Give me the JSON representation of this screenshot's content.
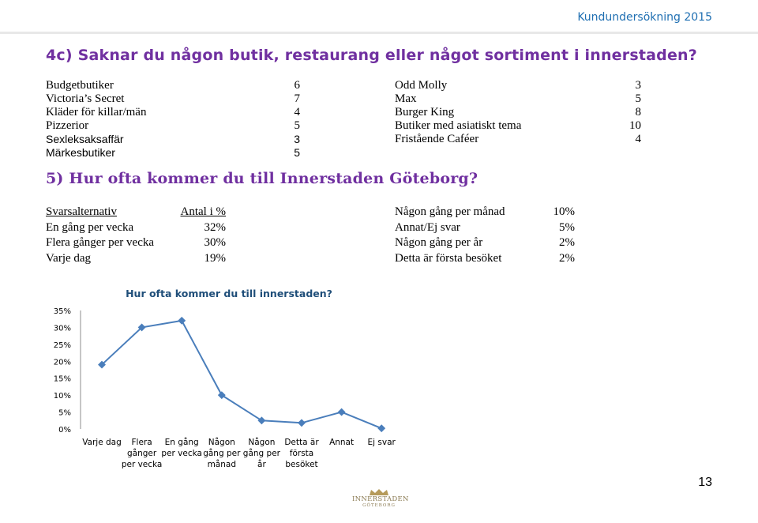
{
  "header": {
    "tag": "Kundundersökning 2015"
  },
  "q4c": {
    "title": "4c) Saknar du någon butik, restaurang eller något sortiment i innerstaden?",
    "left": [
      {
        "label": "Budgetbutiker",
        "value": "6"
      },
      {
        "label": "Victoria’s Secret",
        "value": "7"
      },
      {
        "label": "Kläder för killar/män",
        "value": "4"
      },
      {
        "label": "Pizzerior",
        "value": "5"
      },
      {
        "label": "Sexleksaksaffär",
        "value": "3"
      },
      {
        "label": "Märkesbutiker",
        "value": "5"
      }
    ],
    "right": [
      {
        "label": "Odd Molly",
        "value": "3"
      },
      {
        "label": "Max",
        "value": "5"
      },
      {
        "label": "Burger King",
        "value": "8"
      },
      {
        "label": "Butiker med asiatiskt tema",
        "value": "10"
      },
      {
        "label": "Fristående Caféer",
        "value": "4"
      }
    ]
  },
  "q5": {
    "title": "5) Hur ofta kommer du till Innerstaden Göteborg?",
    "header": {
      "option": "Svarsalternativ",
      "share": "Antal i %"
    },
    "left": [
      {
        "label": "En gång per vecka",
        "value": "32%"
      },
      {
        "label": "Flera gånger per vecka",
        "value": "30%"
      },
      {
        "label": "Varje dag",
        "value": "19%"
      }
    ],
    "right": [
      {
        "label": "Någon gång per månad",
        "value": "10%"
      },
      {
        "label": "Annat/Ej svar",
        "value": "5%"
      },
      {
        "label": "Någon gång per år",
        "value": "2%"
      },
      {
        "label": "Detta är första besöket",
        "value": "2%"
      }
    ]
  },
  "chart_data": {
    "type": "line",
    "title": "Hur ofta kommer du till innerstaden?",
    "categories": [
      [
        "Varje dag"
      ],
      [
        "Flera",
        "gånger",
        "per vecka"
      ],
      [
        "En gång",
        "per vecka"
      ],
      [
        "Någon",
        "gång per",
        "månad"
      ],
      [
        "Någon",
        "gång per",
        "år"
      ],
      [
        "Detta är",
        "första",
        "besöket"
      ],
      [
        "Annat"
      ],
      [
        "Ej svar"
      ]
    ],
    "values": [
      19,
      30,
      32,
      10,
      2.5,
      1.8,
      5,
      0.2
    ],
    "ylim": [
      0,
      35
    ],
    "yticks": [
      "0%",
      "5%",
      "10%",
      "15%",
      "20%",
      "25%",
      "30%",
      "35%"
    ],
    "line_color": "#4a7ebb",
    "grid": false
  },
  "footer": {
    "page_number": "13",
    "logo_line1": "INNERSTADEN",
    "logo_line2": "GÖTEBORG"
  }
}
